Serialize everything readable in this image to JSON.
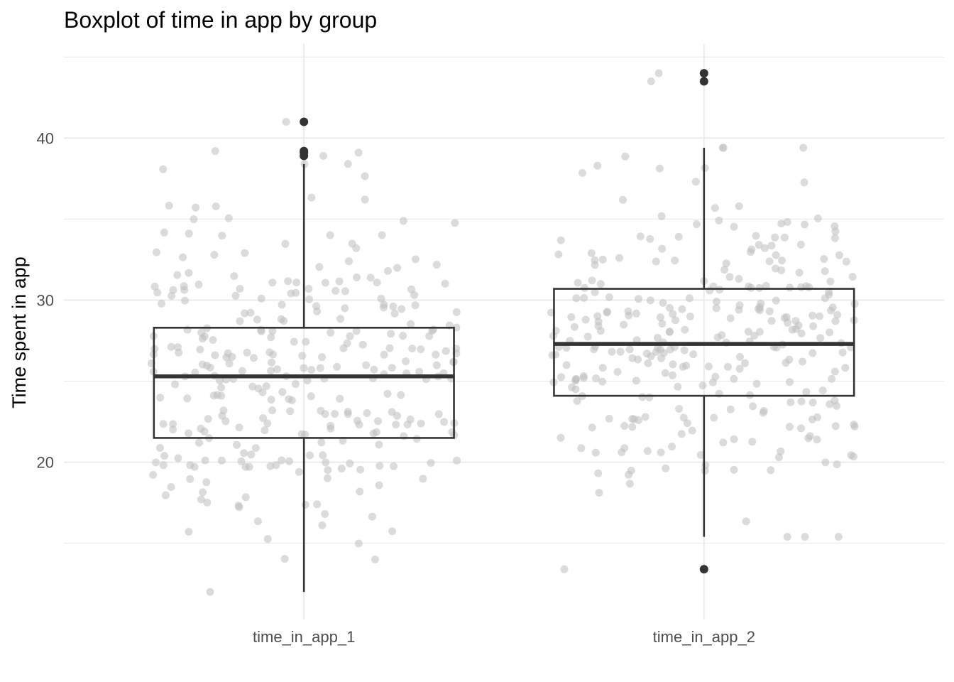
{
  "chart_data": {
    "type": "boxplot",
    "title": "Boxplot of time in app by group",
    "xlabel": "",
    "ylabel": "Time spent in app",
    "ylim": [
      10.3,
      45.8
    ],
    "yticks": [
      20,
      30,
      40
    ],
    "grid": true,
    "colors": {
      "box": "#333333",
      "points": "#bdbdbd",
      "grid": "#ebebeb",
      "outliers": "#333333"
    },
    "categories": [
      "time_in_app_1",
      "time_in_app_2"
    ],
    "boxes": [
      {
        "name": "time_in_app_1",
        "whisker_low": 12.0,
        "q1": 21.5,
        "median": 25.3,
        "q3": 28.3,
        "whisker_high": 38.4,
        "outliers": [
          41.0,
          39.2,
          39.1,
          38.9
        ]
      },
      {
        "name": "time_in_app_2",
        "whisker_low": 15.4,
        "q1": 24.1,
        "median": 27.3,
        "q3": 30.7,
        "whisker_high": 39.4,
        "outliers": [
          44.0,
          43.5,
          13.4
        ]
      }
    ]
  }
}
